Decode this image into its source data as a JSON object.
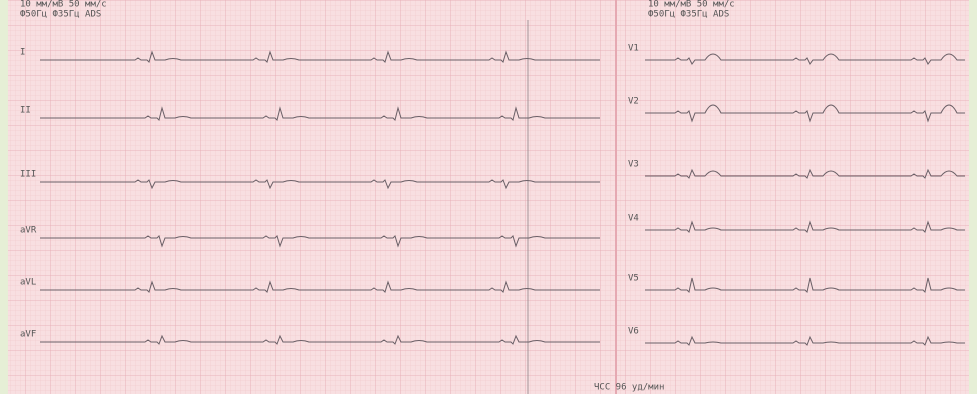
{
  "header_left": {
    "line1": "10 мм/мВ  50 мм/с",
    "line2": "Ф50Гц  Ф35Гц  ADS"
  },
  "header_right": {
    "line1": "10 мм/мВ  50 мм/с",
    "line2": "Ф50Гц  Ф35Гц  ADS"
  },
  "leads_left": [
    "I",
    "II",
    "III",
    "aVR",
    "aVL",
    "aVF"
  ],
  "leads_right": [
    "V1",
    "V2",
    "V3",
    "V4",
    "V5",
    "V6"
  ],
  "footer": "ЧСС 96 уд/мин"
}
